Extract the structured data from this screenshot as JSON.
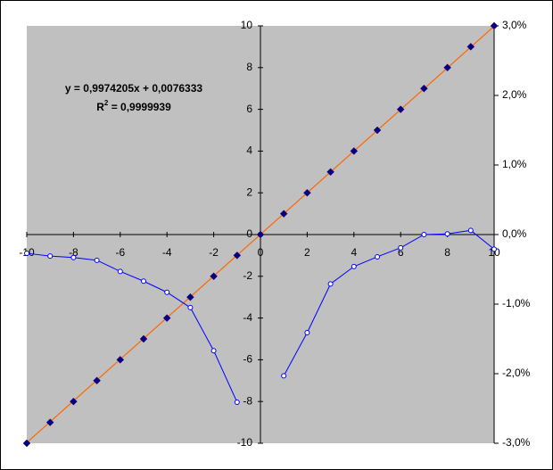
{
  "chart_data": {
    "type": "scatter",
    "plot_color": "#c0c0c0",
    "x": [
      -10,
      -9,
      -8,
      -7,
      -6,
      -5,
      -4,
      -3,
      -2,
      -1,
      0,
      1,
      2,
      3,
      4,
      5,
      6,
      7,
      8,
      9,
      10
    ],
    "xlim": [
      -10,
      10
    ],
    "xticks": [
      -10,
      -8,
      -6,
      -4,
      -2,
      0,
      2,
      4,
      6,
      8,
      10
    ],
    "ylim": [
      -10,
      10
    ],
    "yticks": [
      -10,
      -8,
      -6,
      -4,
      -2,
      0,
      2,
      4,
      6,
      8,
      10
    ],
    "y2lim": [
      -3,
      3
    ],
    "y2ticks": [
      {
        "value": -3,
        "label": "-3,0%"
      },
      {
        "value": -2,
        "label": "-2,0%"
      },
      {
        "value": -1,
        "label": "-1,0%"
      },
      {
        "value": 0,
        "label": "0,0%"
      },
      {
        "value": 1,
        "label": "1,0%"
      },
      {
        "value": 2,
        "label": "2,0%"
      },
      {
        "value": 3,
        "label": "3,0%"
      }
    ],
    "series": [
      {
        "color": "#000080",
        "marker": "diamond",
        "values": [
          -10,
          -9,
          -8,
          -7,
          -6,
          -5,
          -4,
          -3,
          -2,
          -1,
          0,
          1,
          2,
          3,
          4,
          5,
          6,
          7,
          8,
          9,
          10
        ]
      },
      {
        "color": "#0000ff",
        "marker": "circle",
        "axis": "y2",
        "values": [
          -0.27,
          -0.31,
          -0.33,
          -0.37,
          -0.53,
          -0.67,
          -0.83,
          -1.05,
          -1.67,
          -2.41,
          null,
          -2.03,
          -1.41,
          -0.71,
          -0.46,
          -0.32,
          -0.19,
          0.0,
          0.01,
          0.06,
          -0.21
        ]
      }
    ],
    "trendline": {
      "color": "#ff6600",
      "x": [
        -10,
        10
      ],
      "values": [
        -9.97,
        9.98
      ]
    },
    "annotations": {
      "equation": "y = 0,9974205x + 0,0076333",
      "r2_label": "R",
      "r2_sup": "2",
      "r2_value": " = 0,9999939"
    }
  }
}
